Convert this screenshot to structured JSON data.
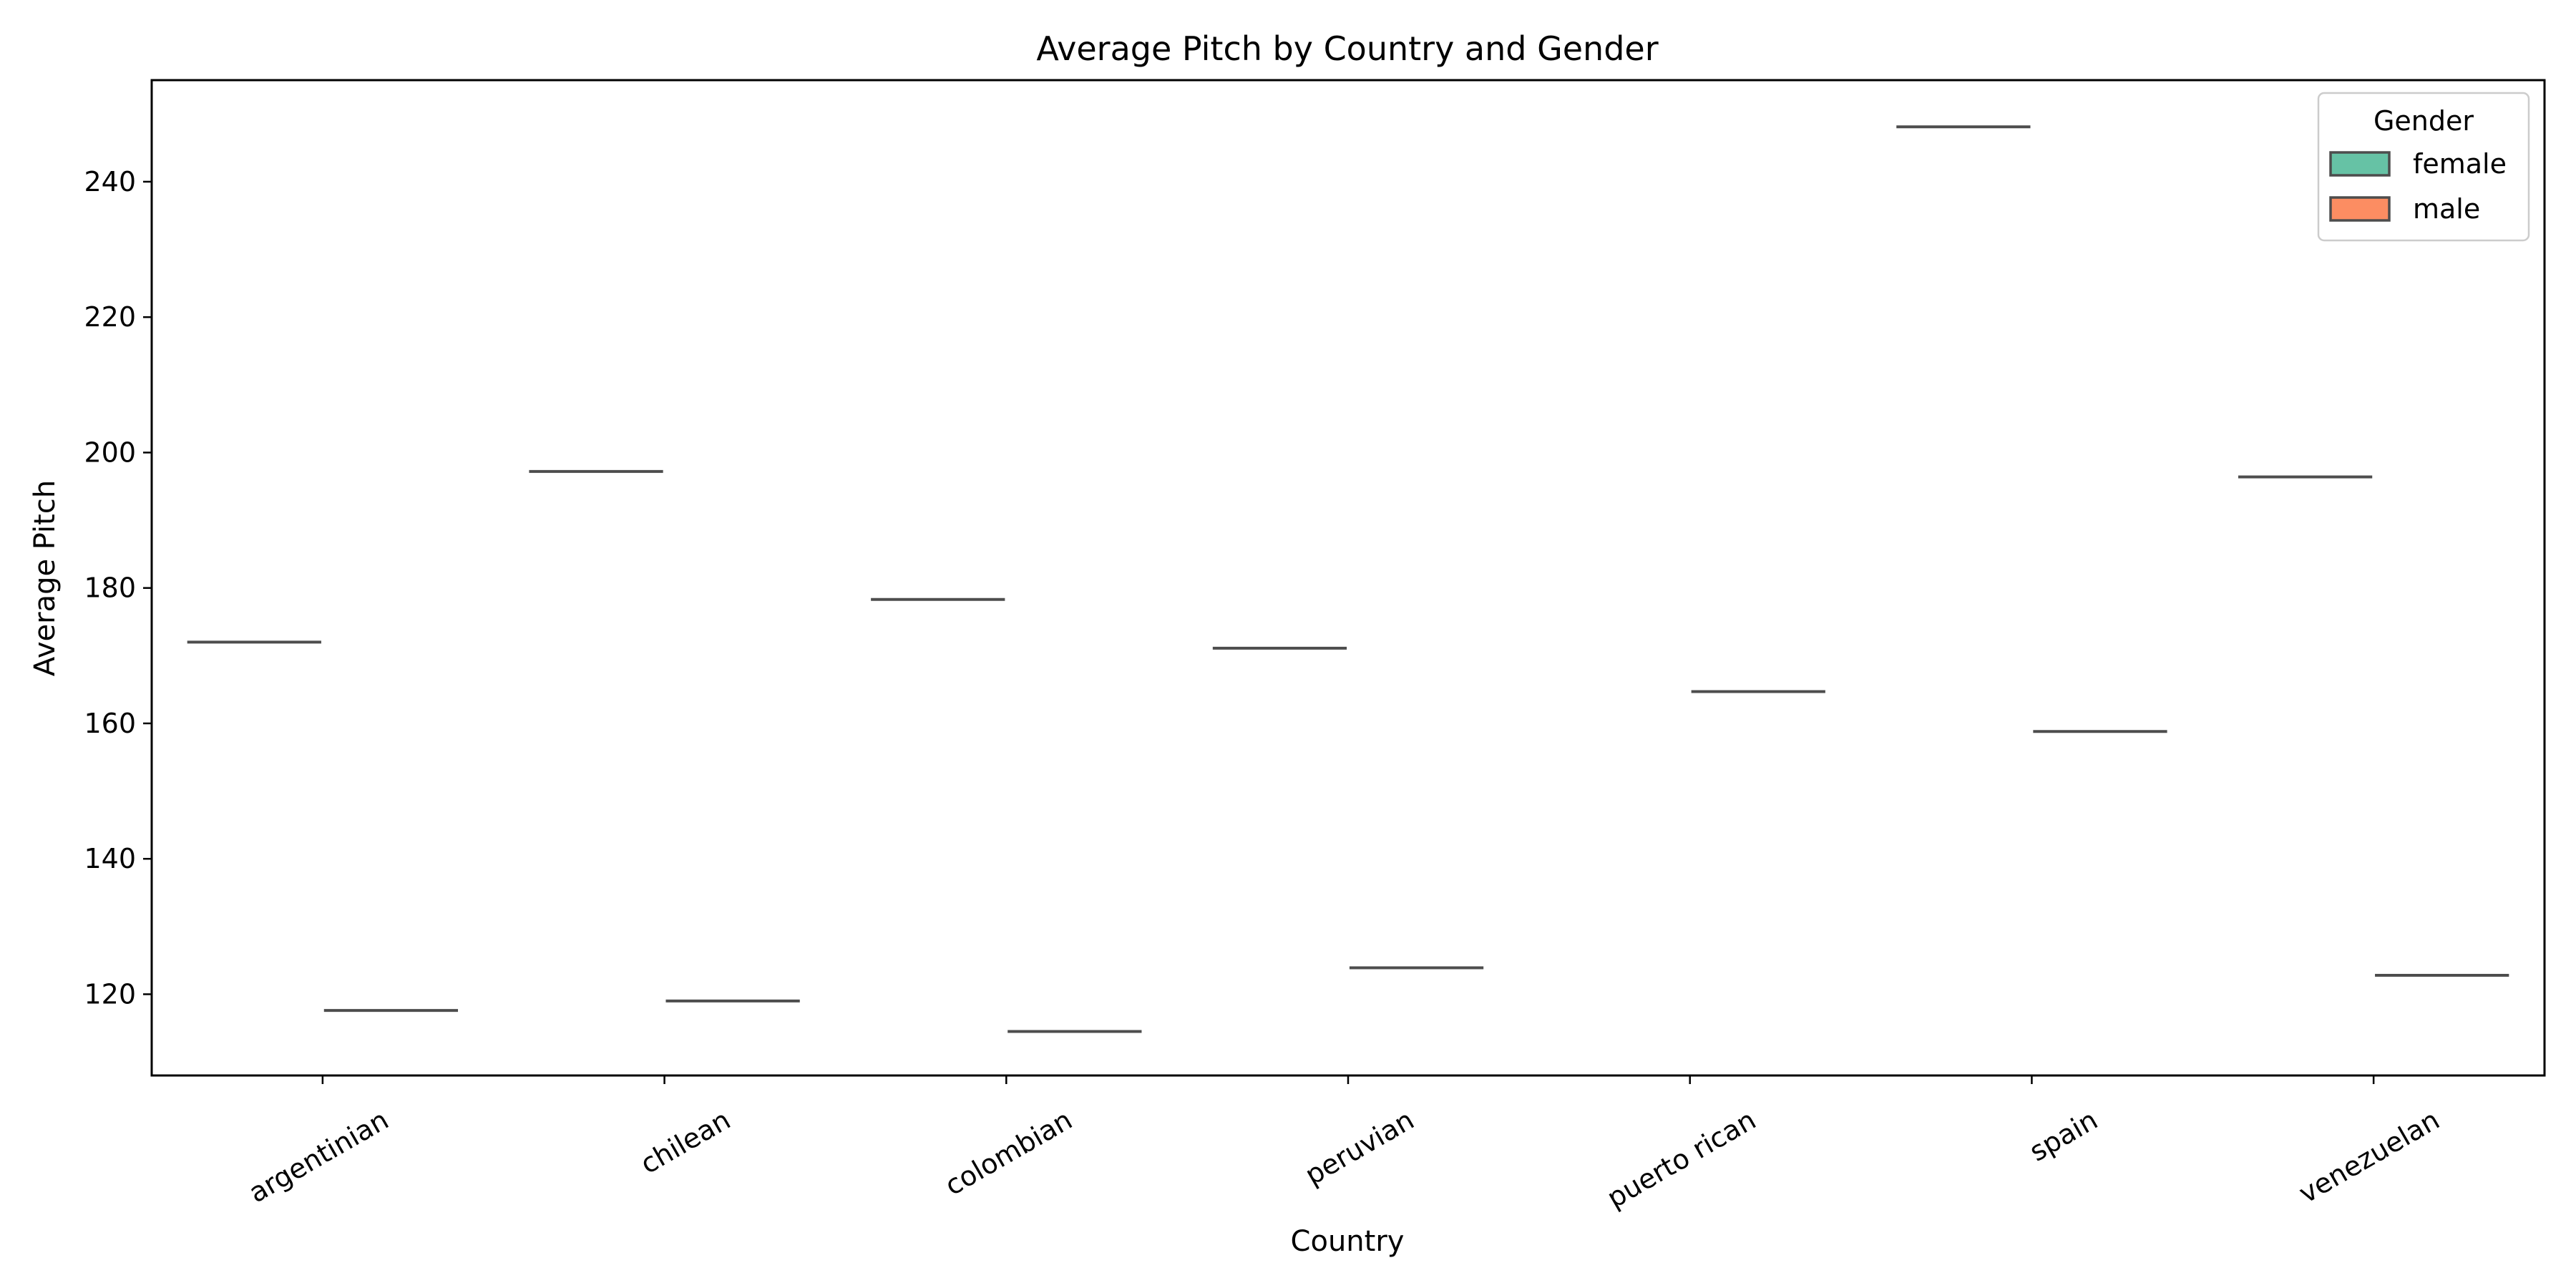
{
  "chart_data": {
    "type": "box",
    "title": "Average Pitch by Country and Gender",
    "xlabel": "Country",
    "ylabel": "Average Pitch",
    "categories": [
      "argentinian",
      "chilean",
      "colombian",
      "peruvian",
      "puerto rican",
      "spain",
      "venezuelan"
    ],
    "ylim": [
      108,
      255
    ],
    "yticks": [
      120,
      140,
      160,
      180,
      200,
      220,
      240
    ],
    "grid": false,
    "legend": {
      "title": "Gender",
      "position": "top-right"
    },
    "series": [
      {
        "name": "female",
        "color": "#66c2a5",
        "values": [
          172,
          197.2,
          178.3,
          171.1,
          null,
          248.1,
          196.4
        ]
      },
      {
        "name": "male",
        "color": "#fc8d62",
        "values": [
          117.6,
          119,
          114.5,
          123.9,
          164.7,
          158.8,
          122.8
        ]
      }
    ]
  }
}
